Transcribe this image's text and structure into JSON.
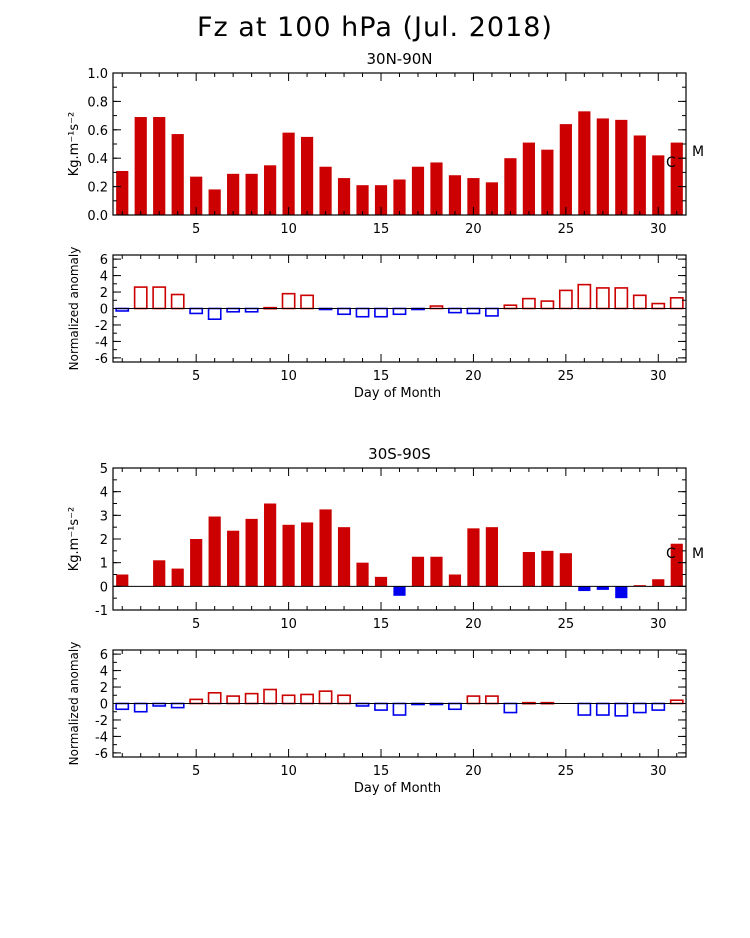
{
  "title": "Fz at 100 hPa (Jul. 2018)",
  "colors": {
    "bar": "#cc0000",
    "positive_anomaly": "#cc0000",
    "negative_anomaly": "#0000ee",
    "axis": "#000000"
  },
  "chart_data": [
    {
      "type": "bar",
      "title": "30N-90N",
      "ylabel": "Kg.m⁻¹s⁻²",
      "xlabel": "",
      "xlim": [
        0.5,
        31.5
      ],
      "ylim": [
        0,
        1.0
      ],
      "yticks": [
        "0.0",
        "0.2",
        "0.4",
        "0.6",
        "0.8",
        "1.0"
      ],
      "xticks": [
        "5",
        "10",
        "15",
        "20",
        "25",
        "30"
      ],
      "markers": [
        "C",
        "M"
      ],
      "x": [
        1,
        2,
        3,
        4,
        5,
        6,
        7,
        8,
        9,
        10,
        11,
        12,
        13,
        14,
        15,
        16,
        17,
        18,
        19,
        20,
        21,
        22,
        23,
        24,
        25,
        26,
        27,
        28,
        29,
        30,
        31
      ],
      "values": [
        0.31,
        0.69,
        0.69,
        0.57,
        0.27,
        0.18,
        0.29,
        0.29,
        0.35,
        0.58,
        0.55,
        0.34,
        0.26,
        0.21,
        0.21,
        0.25,
        0.34,
        0.37,
        0.28,
        0.26,
        0.23,
        0.4,
        0.51,
        0.46,
        0.64,
        0.73,
        0.68,
        0.67,
        0.56,
        0.42,
        0.51
      ]
    },
    {
      "type": "bar",
      "title": "",
      "ylabel": "Normalized anomaly",
      "xlabel": "Day of Month",
      "xlim": [
        0.5,
        31.5
      ],
      "ylim": [
        -6.5,
        6.5
      ],
      "yticks": [
        "-6",
        "-4",
        "-2",
        "0",
        "2",
        "4",
        "6"
      ],
      "xticks": [
        "5",
        "10",
        "15",
        "20",
        "25",
        "30"
      ],
      "x": [
        1,
        2,
        3,
        4,
        5,
        6,
        7,
        8,
        9,
        10,
        11,
        12,
        13,
        14,
        15,
        16,
        17,
        18,
        19,
        20,
        21,
        22,
        23,
        24,
        25,
        26,
        27,
        28,
        29,
        30,
        31
      ],
      "values": [
        -0.3,
        2.6,
        2.6,
        1.7,
        -0.6,
        -1.3,
        -0.4,
        -0.4,
        0.1,
        1.8,
        1.6,
        -0.1,
        -0.7,
        -1.0,
        -1.0,
        -0.7,
        -0.1,
        0.3,
        -0.5,
        -0.6,
        -0.9,
        0.4,
        1.2,
        0.9,
        2.2,
        2.9,
        2.5,
        2.5,
        1.6,
        0.6,
        1.3
      ]
    },
    {
      "type": "bar",
      "title": "30S-90S",
      "ylabel": "Kg.m⁻¹s⁻²",
      "xlabel": "",
      "xlim": [
        0.5,
        31.5
      ],
      "ylim": [
        -1.0,
        5.0
      ],
      "yticks": [
        "-1",
        "0",
        "1",
        "2",
        "3",
        "4",
        "5"
      ],
      "xticks": [
        "5",
        "10",
        "15",
        "20",
        "25",
        "30"
      ],
      "markers": [
        "C",
        "M"
      ],
      "x": [
        1,
        2,
        3,
        4,
        5,
        6,
        7,
        8,
        9,
        10,
        11,
        12,
        13,
        14,
        15,
        16,
        17,
        18,
        19,
        20,
        21,
        22,
        23,
        24,
        25,
        26,
        27,
        28,
        29,
        30,
        31
      ],
      "values": [
        0.5,
        0.0,
        1.1,
        0.75,
        2.0,
        2.95,
        2.35,
        2.85,
        3.5,
        2.6,
        2.7,
        3.25,
        2.5,
        1.0,
        0.4,
        -0.4,
        1.25,
        1.25,
        0.5,
        2.45,
        2.5,
        0.0,
        1.45,
        1.5,
        1.4,
        -0.2,
        -0.15,
        -0.5,
        0.05,
        0.3,
        1.8
      ]
    },
    {
      "type": "bar",
      "title": "",
      "ylabel": "Normalized anomaly",
      "xlabel": "Day of Month",
      "xlim": [
        0.5,
        31.5
      ],
      "ylim": [
        -6.5,
        6.5
      ],
      "yticks": [
        "-6",
        "-4",
        "-2",
        "0",
        "2",
        "4",
        "6"
      ],
      "xticks": [
        "5",
        "10",
        "15",
        "20",
        "25",
        "30"
      ],
      "x": [
        1,
        2,
        3,
        4,
        5,
        6,
        7,
        8,
        9,
        10,
        11,
        12,
        13,
        14,
        15,
        16,
        17,
        18,
        19,
        20,
        21,
        22,
        23,
        24,
        25,
        26,
        27,
        28,
        29,
        30,
        31
      ],
      "values": [
        -0.7,
        -1.0,
        -0.3,
        -0.5,
        0.5,
        1.3,
        0.9,
        1.2,
        1.7,
        1.0,
        1.1,
        1.5,
        1.0,
        -0.3,
        -0.8,
        -1.4,
        -0.1,
        -0.1,
        -0.7,
        0.9,
        0.9,
        -1.1,
        0.1,
        0.1,
        0.0,
        -1.4,
        -1.4,
        -1.5,
        -1.1,
        -0.8,
        0.4
      ]
    }
  ]
}
